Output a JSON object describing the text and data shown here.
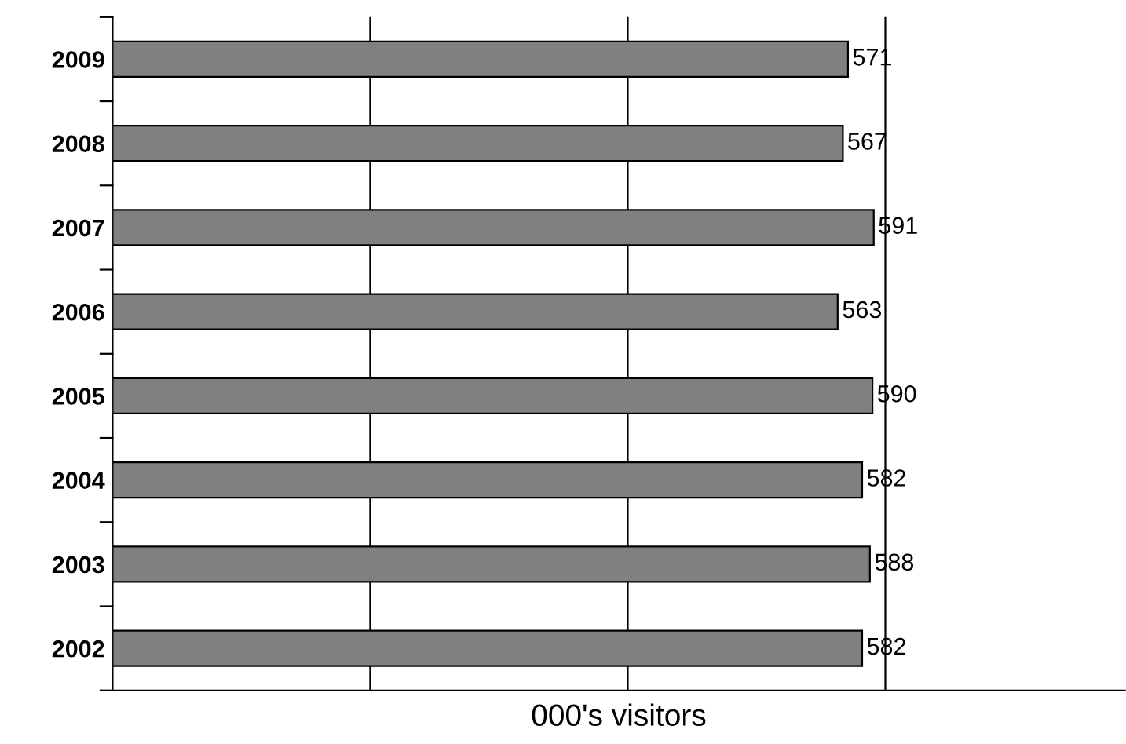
{
  "chart_data": {
    "type": "bar",
    "orientation": "horizontal",
    "xlabel": "000's visitors",
    "categories": [
      "2009",
      "2008",
      "2007",
      "2006",
      "2005",
      "2004",
      "2003",
      "2002"
    ],
    "values": [
      571,
      567,
      591,
      563,
      590,
      582,
      588,
      582
    ],
    "color": "#808080",
    "data_labels": true,
    "xlim": [
      0,
      786
    ],
    "xticks": [
      {
        "value": 200,
        "label": null
      },
      {
        "value": 400,
        "label": null
      },
      {
        "value": 600,
        "label": null
      }
    ],
    "grid": "x",
    "tick_labels": "y"
  }
}
